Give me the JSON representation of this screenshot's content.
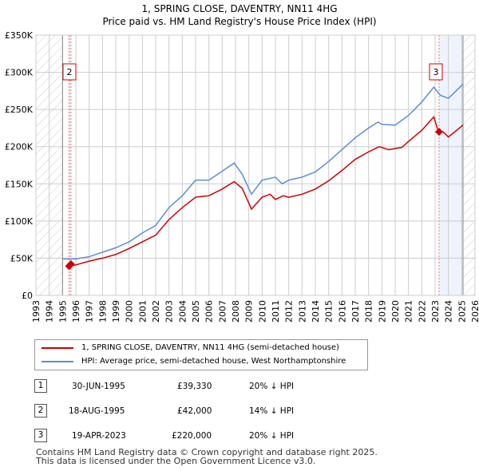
{
  "chart_data": {
    "type": "line",
    "title": "1, SPRING CLOSE, DAVENTRY, NN11 4HG",
    "subtitle": "Price paid vs. HM Land Registry's House Price Index (HPI)",
    "xlim": [
      1993,
      2026
    ],
    "ylim": [
      0,
      350000
    ],
    "y_ticks": [
      {
        "v": 0,
        "label": "£0"
      },
      {
        "v": 50000,
        "label": "£50K"
      },
      {
        "v": 100000,
        "label": "£100K"
      },
      {
        "v": 150000,
        "label": "£150K"
      },
      {
        "v": 200000,
        "label": "£200K"
      },
      {
        "v": 250000,
        "label": "£250K"
      },
      {
        "v": 300000,
        "label": "£300K"
      },
      {
        "v": 350000,
        "label": "£350K"
      }
    ],
    "x_ticks": [
      "1993",
      "1994",
      "1995",
      "1996",
      "1997",
      "1998",
      "1999",
      "2000",
      "2001",
      "2002",
      "2003",
      "2004",
      "2005",
      "2006",
      "2007",
      "2008",
      "2009",
      "2010",
      "2011",
      "2012",
      "2013",
      "2014",
      "2015",
      "2016",
      "2017",
      "2018",
      "2019",
      "2020",
      "2021",
      "2022",
      "2023",
      "2024",
      "2025",
      "2026"
    ],
    "grid": true,
    "data_start": 1995.0,
    "data_end": 2025.1,
    "series": [
      {
        "name": "1, SPRING CLOSE, DAVENTRY, NN11 4HG (semi-detached house)",
        "color": "#cc0000",
        "x": [
          1995.5,
          1996,
          1997,
          1998,
          1999,
          2000,
          2001,
          2002,
          2003,
          2004,
          2005,
          2006,
          2007,
          2007.9,
          2008.5,
          2009.2,
          2010,
          2010.6,
          2011,
          2011.6,
          2012,
          2013,
          2014,
          2015,
          2016,
          2017,
          2018,
          2018.8,
          2019.5,
          2020.5,
          2021,
          2022,
          2022.9,
          2023.25,
          2023.6,
          2024,
          2025.1
        ],
        "y": [
          39330,
          41000,
          46000,
          50000,
          55000,
          63000,
          72000,
          81000,
          102000,
          118000,
          132000,
          134000,
          143000,
          153000,
          144000,
          116000,
          132000,
          136000,
          129000,
          134000,
          132000,
          136000,
          143000,
          154000,
          168000,
          183000,
          193000,
          200000,
          196000,
          199000,
          207000,
          222000,
          240000,
          220000,
          220000,
          213000,
          229000
        ]
      },
      {
        "name": "HPI: Average price, semi-detached house, West Northamptonshire",
        "color": "#5b8fd0",
        "x": [
          1995,
          1996,
          1997,
          1998,
          1999,
          2000,
          2001,
          2002,
          2003,
          2004,
          2005,
          2006,
          2007,
          2007.9,
          2008.5,
          2009.2,
          2010,
          2011,
          2011.5,
          2012,
          2013,
          2014,
          2015,
          2016,
          2017,
          2018,
          2018.7,
          2019,
          2020,
          2021,
          2022,
          2022.9,
          2023.4,
          2024,
          2025.1
        ],
        "y": [
          49000,
          49000,
          52000,
          58000,
          64000,
          72000,
          84000,
          94000,
          118000,
          134000,
          155000,
          155000,
          167000,
          178000,
          163000,
          136000,
          155000,
          159000,
          150000,
          155000,
          159000,
          166000,
          180000,
          196000,
          212000,
          225000,
          233000,
          230000,
          229000,
          242000,
          260000,
          280000,
          269000,
          265000,
          284000
        ]
      }
    ],
    "sales": [
      {
        "n": "1",
        "x": 1995.49,
        "y": 39330
      },
      {
        "n": "2",
        "x": 1995.63,
        "y": 42000
      },
      {
        "n": "3",
        "x": 2023.3,
        "y": 220000
      }
    ],
    "legend_placement": "below"
  },
  "table": [
    {
      "n": "1",
      "date": "30-JUN-1995",
      "price": "£39,330",
      "hpi": "20% ↓ HPI"
    },
    {
      "n": "2",
      "date": "18-AUG-1995",
      "price": "£42,000",
      "hpi": "14% ↓ HPI"
    },
    {
      "n": "3",
      "date": "19-APR-2023",
      "price": "£220,000",
      "hpi": "20% ↓ HPI"
    }
  ],
  "footer": [
    "Contains HM Land Registry data © Crown copyright and database right 2025.",
    "This data is licensed under the Open Government Licence v3.0."
  ]
}
